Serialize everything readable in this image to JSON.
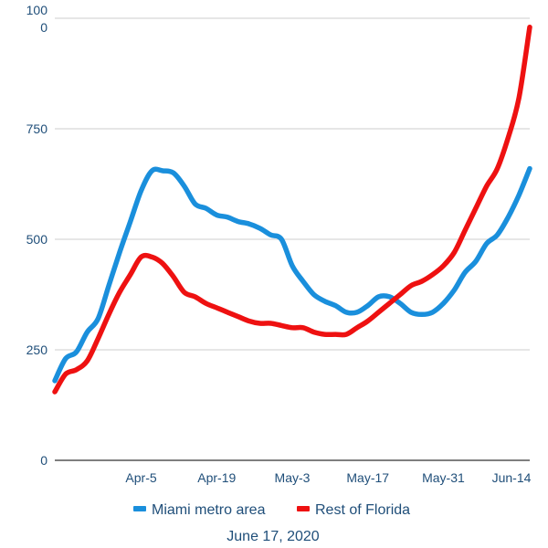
{
  "chart_data": {
    "type": "line",
    "ylim": [
      0,
      1000
    ],
    "y_ticks": [
      {
        "value": 0,
        "label": "0"
      },
      {
        "value": 250,
        "label": "250"
      },
      {
        "value": 500,
        "label": "500"
      },
      {
        "value": 750,
        "label": "750"
      },
      {
        "value": 1000,
        "label": "1000"
      }
    ],
    "x_ticks": [
      "Apr-5",
      "Apr-19",
      "May-3",
      "May-17",
      "May-31",
      "Jun-14"
    ],
    "x": [
      "Mar-20",
      "Mar-22",
      "Mar-24",
      "Mar-26",
      "Mar-28",
      "Mar-30",
      "Apr-1",
      "Apr-3",
      "Apr-5",
      "Apr-7",
      "Apr-9",
      "Apr-11",
      "Apr-13",
      "Apr-15",
      "Apr-17",
      "Apr-19",
      "Apr-21",
      "Apr-23",
      "Apr-25",
      "Apr-27",
      "Apr-29",
      "May-1",
      "May-3",
      "May-5",
      "May-7",
      "May-9",
      "May-11",
      "May-13",
      "May-15",
      "May-17",
      "May-19",
      "May-21",
      "May-23",
      "May-25",
      "May-27",
      "May-29",
      "May-31",
      "Jun-2",
      "Jun-4",
      "Jun-6",
      "Jun-8",
      "Jun-10",
      "Jun-12",
      "Jun-14",
      "Jun-16"
    ],
    "series": [
      {
        "name": "Miami metro area",
        "color": "#1a8fdc",
        "values": [
          180,
          230,
          245,
          290,
          320,
          395,
          470,
          540,
          610,
          655,
          655,
          650,
          620,
          580,
          570,
          555,
          550,
          540,
          535,
          525,
          510,
          500,
          440,
          405,
          375,
          360,
          350,
          335,
          335,
          350,
          370,
          370,
          355,
          335,
          330,
          335,
          355,
          385,
          425,
          450,
          490,
          510,
          550,
          600,
          660
        ]
      },
      {
        "name": "Rest of Florida",
        "color": "#ee1111",
        "values": [
          155,
          195,
          205,
          225,
          275,
          330,
          380,
          420,
          460,
          460,
          445,
          415,
          380,
          370,
          355,
          345,
          335,
          325,
          315,
          310,
          310,
          305,
          300,
          300,
          290,
          285,
          285,
          285,
          300,
          315,
          335,
          355,
          375,
          395,
          405,
          420,
          440,
          470,
          520,
          570,
          620,
          660,
          730,
          820,
          980
        ]
      }
    ],
    "caption": "June 17, 2020"
  }
}
